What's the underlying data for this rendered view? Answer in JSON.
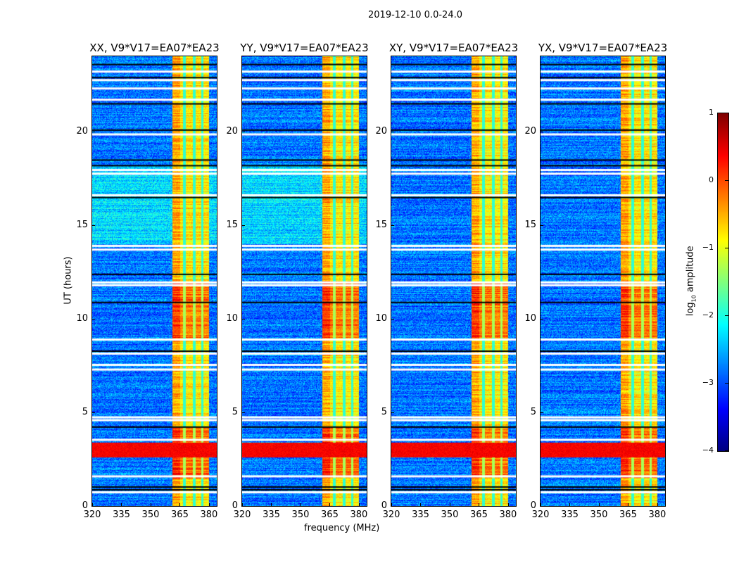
{
  "chart_data": {
    "type": "heatmap",
    "title": "2019-12-10 0.0-24.0",
    "xlabel": "frequency (MHz)",
    "ylabel": "UT (hours)",
    "xlim": [
      320,
      384
    ],
    "ylim": [
      0,
      24
    ],
    "xticks": [
      "320",
      "335",
      "350",
      "365",
      "380"
    ],
    "xtick_values": [
      320,
      335,
      350,
      365,
      380
    ],
    "yticks": [
      "0",
      "5",
      "10",
      "15",
      "20"
    ],
    "ytick_values": [
      0,
      5,
      10,
      15,
      20
    ],
    "panels": [
      {
        "title": "XX, V9*V17=EA07*EA23",
        "background_boost": 0.5
      },
      {
        "title": "YY, V9*V17=EA07*EA23",
        "background_boost": 0.5
      },
      {
        "title": "XY, V9*V17=EA07*EA23",
        "background_boost": 0.0
      },
      {
        "title": "YX, V9*V17=EA07*EA23",
        "background_boost": 0.0
      }
    ],
    "background_log_amplitude": -2.8,
    "signal_band_mhz": [
      361,
      380
    ],
    "signal_band_log_amplitude": -0.8,
    "rfi_time_range_hours": [
      2.6,
      3.4
    ],
    "rfi_log_amplitude": 0.4,
    "flagged_hours_white": [
      0.75,
      1.6,
      3.55,
      4.6,
      4.75,
      7.3,
      7.55,
      8.15,
      8.9,
      11.8,
      11.95,
      13.7,
      13.9,
      16.6,
      17.75,
      17.95,
      19.85,
      21.7,
      22.3,
      22.75,
      23.2
    ],
    "flagged_hours_black": [
      0.9,
      1.05,
      4.25,
      8.3,
      10.9,
      12.4,
      16.5,
      18.2,
      18.5,
      20.1,
      21.5,
      22.9,
      23.6
    ],
    "colorbar": {
      "label": "log10 amplitude",
      "label_main": "log",
      "label_sub": "10",
      "label_rest": " amplitude",
      "range": [
        -4,
        1
      ],
      "ticks": [
        "1",
        "0",
        "−1",
        "−2",
        "−3",
        "−4"
      ],
      "tick_values": [
        1,
        0,
        -1,
        -2,
        -3,
        -4
      ],
      "colormap": "jet"
    }
  }
}
